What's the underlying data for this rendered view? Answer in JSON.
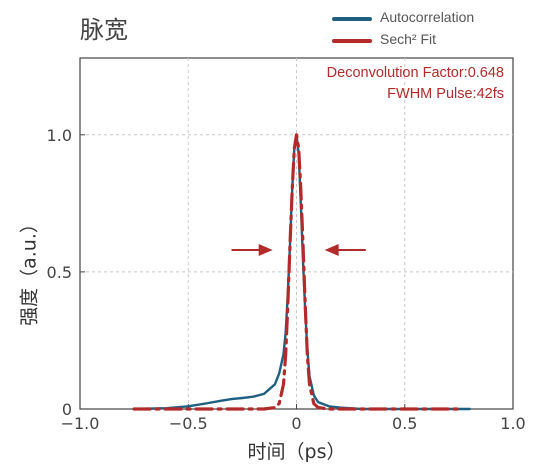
{
  "title": "脉宽",
  "legend": [
    {
      "label": "Autocorrelation",
      "color": "#1f5f82"
    },
    {
      "label": "Sech² Fit",
      "color": "#b22a2a"
    }
  ],
  "annotations": {
    "deconvolution": "Deconvolution Factor:0.648",
    "fwhm": "FWHM Pulse:42fs",
    "color": "#b22a2a"
  },
  "chart_data": {
    "type": "line",
    "title": "脉宽",
    "xlabel": "时间（ps）",
    "ylabel": "强度（a.u.）",
    "xlim": [
      -1.0,
      1.0
    ],
    "ylim": [
      0,
      1.28
    ],
    "xticks": [
      {
        "value": -1.0,
        "label": "−1.0"
      },
      {
        "value": -0.5,
        "label": "−0.5"
      },
      {
        "value": 0,
        "label": "0"
      },
      {
        "value": 0.5,
        "label": "0.5"
      },
      {
        "value": 1.0,
        "label": "1.0"
      }
    ],
    "yticks": [
      {
        "value": 0,
        "label": "0"
      },
      {
        "value": 0.5,
        "label": "0.5"
      },
      {
        "value": 1.0,
        "label": "1.0"
      }
    ],
    "grid": true,
    "series": [
      {
        "name": "Autocorrelation",
        "color": "#1f5f82",
        "style": "solid",
        "x": [
          -0.75,
          -0.6,
          -0.5,
          -0.42,
          -0.35,
          -0.3,
          -0.25,
          -0.2,
          -0.15,
          -0.1,
          -0.08,
          -0.06,
          -0.05,
          -0.04,
          -0.03,
          -0.02,
          -0.01,
          0.0,
          0.01,
          0.02,
          0.03,
          0.04,
          0.05,
          0.06,
          0.08,
          0.1,
          0.15,
          0.2,
          0.3,
          0.4,
          0.5,
          0.6,
          0.7,
          0.8
        ],
        "y": [
          0.0,
          0.003,
          0.01,
          0.02,
          0.03,
          0.036,
          0.04,
          0.045,
          0.055,
          0.09,
          0.13,
          0.2,
          0.28,
          0.42,
          0.6,
          0.8,
          0.95,
          1.0,
          0.93,
          0.75,
          0.54,
          0.36,
          0.22,
          0.12,
          0.05,
          0.025,
          0.01,
          0.005,
          0.0,
          0.0,
          0.0,
          0.0,
          0.0,
          0.0
        ]
      },
      {
        "name": "Sech² Fit",
        "color": "#b22a2a",
        "style": "dashed",
        "x": [
          -0.75,
          -0.5,
          -0.3,
          -0.15,
          -0.1,
          -0.08,
          -0.06,
          -0.05,
          -0.04,
          -0.03,
          -0.02,
          -0.01,
          0.0,
          0.01,
          0.02,
          0.03,
          0.04,
          0.05,
          0.06,
          0.08,
          0.1,
          0.15,
          0.3,
          0.5,
          0.75
        ],
        "y": [
          0.0,
          0.0,
          0.0,
          0.0,
          0.005,
          0.02,
          0.09,
          0.2,
          0.38,
          0.6,
          0.8,
          0.95,
          1.0,
          0.95,
          0.8,
          0.6,
          0.38,
          0.2,
          0.09,
          0.02,
          0.005,
          0.0,
          0.0,
          0.0,
          0.0
        ]
      }
    ],
    "arrows": [
      {
        "direction": "right",
        "x_from": -0.3,
        "x_to": -0.11,
        "y": 0.58
      },
      {
        "direction": "left",
        "x_from": 0.32,
        "x_to": 0.13,
        "y": 0.58
      }
    ]
  }
}
